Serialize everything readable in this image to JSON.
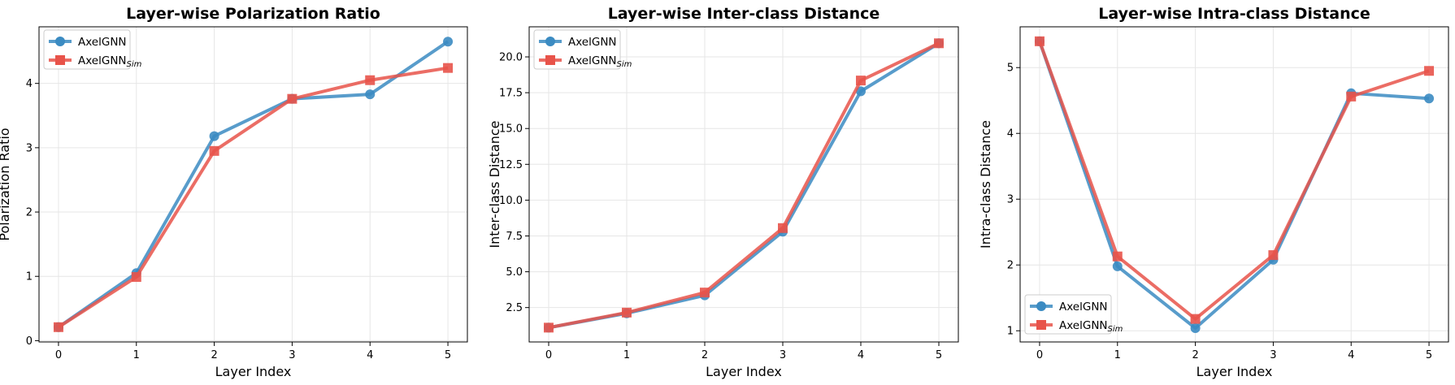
{
  "chart_data": [
    {
      "type": "line",
      "title": "Layer-wise Polarization Ratio",
      "xlabel": "Layer Index",
      "ylabel": "Polarization Ratio",
      "x": [
        0,
        1,
        2,
        3,
        4,
        5
      ],
      "xlim": [
        -0.25,
        5.25
      ],
      "ylim": [
        -0.02,
        4.88
      ],
      "yticks": [
        0,
        1,
        2,
        3,
        4
      ],
      "ytick_labels": [
        "0",
        "1",
        "2",
        "3",
        "4"
      ],
      "grid": true,
      "legend_position": "upper-left",
      "series": [
        {
          "name": "AxelGNN",
          "values": [
            0.21,
            1.05,
            3.18,
            3.76,
            3.83,
            4.65
          ],
          "color": "#3b8bc2",
          "marker": "circle"
        },
        {
          "name": "AxelGNN",
          "name_subscript": "Sim",
          "values": [
            0.21,
            0.99,
            2.95,
            3.76,
            4.05,
            4.24
          ],
          "color": "#e8534a",
          "marker": "square"
        }
      ]
    },
    {
      "type": "line",
      "title": "Layer-wise Inter-class Distance",
      "xlabel": "Layer Index",
      "ylabel": "Inter-class Distance",
      "x": [
        0,
        1,
        2,
        3,
        4,
        5
      ],
      "xlim": [
        -0.25,
        5.25
      ],
      "ylim": [
        0.1,
        22.1
      ],
      "yticks": [
        2.5,
        5.0,
        7.5,
        10.0,
        12.5,
        15.0,
        17.5,
        20.0
      ],
      "ytick_labels": [
        "2.5",
        "5.0",
        "7.5",
        "10.0",
        "12.5",
        "15.0",
        "17.5",
        "20.0"
      ],
      "grid": true,
      "legend_position": "upper-left",
      "series": [
        {
          "name": "AxelGNN",
          "values": [
            1.1,
            2.1,
            3.35,
            7.8,
            17.6,
            20.95
          ],
          "color": "#3b8bc2",
          "marker": "circle"
        },
        {
          "name": "AxelGNN",
          "name_subscript": "Sim",
          "values": [
            1.1,
            2.15,
            3.55,
            8.05,
            18.35,
            20.95
          ],
          "color": "#e8534a",
          "marker": "square"
        }
      ]
    },
    {
      "type": "line",
      "title": "Layer-wise Intra-class Distance",
      "xlabel": "Layer Index",
      "ylabel": "Intra-class Distance",
      "x": [
        0,
        1,
        2,
        3,
        4,
        5
      ],
      "xlim": [
        -0.25,
        5.25
      ],
      "ylim": [
        0.83,
        5.62
      ],
      "yticks": [
        1,
        2,
        3,
        4,
        5
      ],
      "ytick_labels": [
        "1",
        "2",
        "3",
        "4",
        "5"
      ],
      "grid": true,
      "legend_position": "lower-left",
      "series": [
        {
          "name": "AxelGNN",
          "values": [
            5.4,
            1.98,
            1.04,
            2.08,
            4.61,
            4.53
          ],
          "color": "#3b8bc2",
          "marker": "circle"
        },
        {
          "name": "AxelGNN",
          "name_subscript": "Sim",
          "values": [
            5.4,
            2.13,
            1.18,
            2.15,
            4.56,
            4.95
          ],
          "color": "#e8534a",
          "marker": "square"
        }
      ]
    }
  ]
}
